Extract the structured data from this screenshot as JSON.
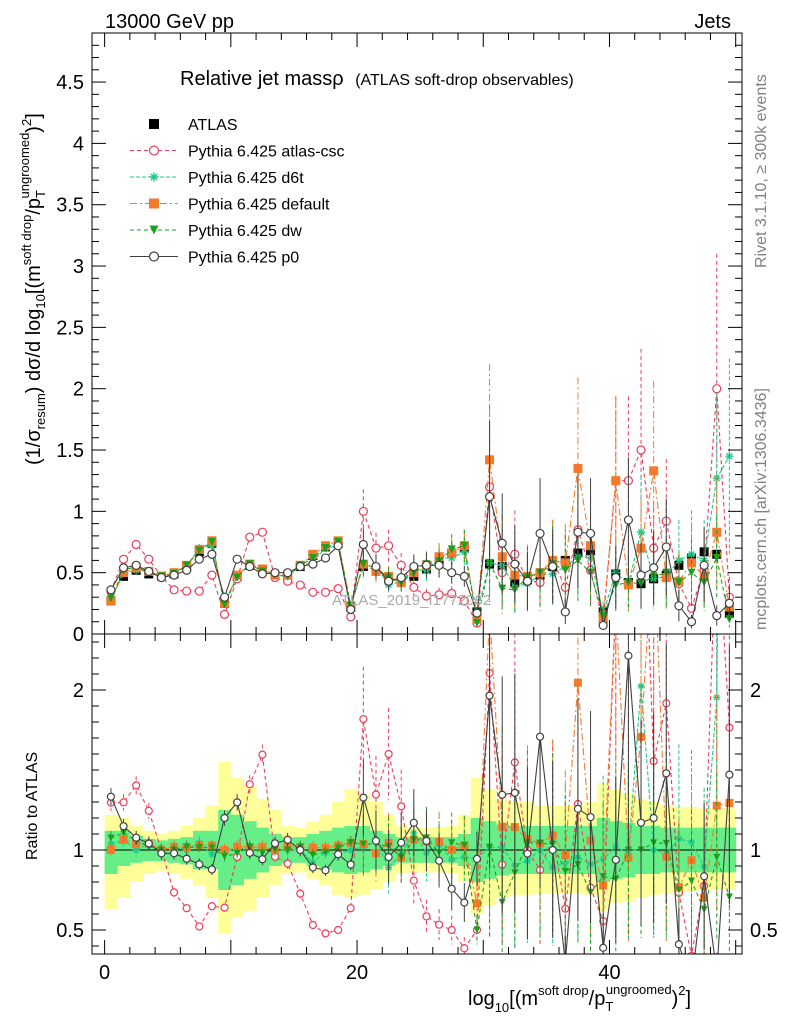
{
  "header": {
    "energy": "13000 GeV pp",
    "category": "Jets"
  },
  "side_labels": {
    "rivet": "Rivet 3.1.10, ≥ 300k events",
    "mcplots": "mcplots.cern.ch [arXiv:1306.3436]"
  },
  "watermark": "ATLAS_2019_I1772062",
  "chart_data": [
    {
      "type": "line",
      "title_main": "Relative jet massρ",
      "title_sub": "(ATLAS soft-drop observables)",
      "ylabel": "(1/σresum) dσ/d log10[(m soft drop/pT ungroomed)2]",
      "ylim": [
        0,
        4.9
      ],
      "xlim": [
        -1,
        50.5
      ],
      "y_ticks": [
        "0",
        "0.5",
        "1",
        "1.5",
        "2",
        "2.5",
        "3",
        "3.5",
        "4",
        "4.5"
      ],
      "legend_position": "top-left",
      "x": [
        0.5,
        1.5,
        2.5,
        3.5,
        4.5,
        5.5,
        6.5,
        7.5,
        8.5,
        9.5,
        10.5,
        11.5,
        12.5,
        13.5,
        14.5,
        15.5,
        16.5,
        17.5,
        18.5,
        19.5,
        20.5,
        21.5,
        22.5,
        23.5,
        24.5,
        25.5,
        26.5,
        27.5,
        28.5,
        29.5,
        30.5,
        31.5,
        32.5,
        33.5,
        34.5,
        35.5,
        36.5,
        37.5,
        38.5,
        39.5,
        40.5,
        41.5,
        42.5,
        43.5,
        44.5,
        45.5,
        46.5,
        47.5,
        48.5,
        49.5
      ],
      "series": [
        {
          "name": "ATLAS",
          "color": "#000000",
          "marker": "square",
          "values": [
            0.27,
            0.47,
            0.52,
            0.49,
            0.47,
            0.49,
            0.55,
            0.67,
            0.74,
            0.25,
            0.47,
            0.56,
            0.52,
            0.48,
            0.47,
            0.55,
            0.64,
            0.71,
            0.74,
            0.22,
            0.55,
            0.52,
            0.45,
            0.44,
            0.47,
            0.53,
            0.6,
            0.66,
            0.7,
            0.18,
            0.57,
            0.55,
            0.42,
            0.44,
            0.48,
            0.55,
            0.6,
            0.66,
            0.68,
            0.18,
            0.49,
            0.42,
            0.41,
            0.45,
            0.48,
            0.56,
            0.62,
            0.67,
            0.65,
            0.17
          ]
        },
        {
          "name": "Pythia 6.425 atlas-csc",
          "color": "#ee3b5a",
          "marker": "circle-open",
          "values": [
            0.35,
            0.61,
            0.73,
            0.61,
            0.47,
            0.36,
            0.35,
            0.35,
            0.48,
            0.16,
            0.45,
            0.79,
            0.83,
            0.46,
            0.43,
            0.4,
            0.34,
            0.34,
            0.37,
            0.14,
            1.0,
            0.7,
            0.72,
            0.56,
            0.38,
            0.31,
            0.32,
            0.33,
            0.27,
            0.09,
            1.2,
            0.5,
            0.65,
            0.44,
            0.42,
            0.6,
            0.38,
            0.85,
            0.52,
            0.1,
            1.25,
            1.25,
            1.5,
            0.7,
            0.92,
            0.41,
            0.21,
            0.52,
            2.0,
            0.3
          ]
        },
        {
          "name": "Pythia 6.425 d6t",
          "color": "#1dcb8a",
          "marker": "star",
          "values": [
            0.28,
            0.5,
            0.52,
            0.51,
            0.47,
            0.5,
            0.55,
            0.7,
            0.72,
            0.25,
            0.47,
            0.57,
            0.53,
            0.48,
            0.47,
            0.55,
            0.59,
            0.7,
            0.72,
            0.22,
            0.56,
            0.55,
            0.4,
            0.43,
            0.52,
            0.52,
            0.62,
            0.62,
            0.67,
            0.17,
            0.58,
            0.56,
            0.38,
            0.41,
            0.48,
            0.49,
            0.55,
            0.63,
            0.62,
            0.17,
            0.5,
            0.41,
            0.83,
            0.45,
            0.47,
            0.6,
            0.65,
            0.6,
            1.27,
            1.45
          ]
        },
        {
          "name": "Pythia 6.425 default",
          "color": "#f47a2a",
          "marker": "square",
          "values": [
            0.27,
            0.5,
            0.54,
            0.51,
            0.47,
            0.5,
            0.56,
            0.69,
            0.76,
            0.25,
            0.48,
            0.57,
            0.53,
            0.48,
            0.48,
            0.56,
            0.65,
            0.72,
            0.76,
            0.23,
            0.57,
            0.51,
            0.47,
            0.42,
            0.5,
            0.56,
            0.63,
            0.66,
            0.72,
            0.12,
            1.42,
            0.63,
            0.48,
            0.47,
            0.5,
            0.6,
            0.58,
            1.35,
            0.72,
            0.14,
            1.25,
            0.4,
            0.7,
            1.33,
            0.46,
            0.43,
            0.58,
            0.47,
            0.83,
            0.22
          ]
        },
        {
          "name": "Pythia 6.425 dw",
          "color": "#1ea01e",
          "marker": "triangle-down",
          "values": [
            0.29,
            0.52,
            0.55,
            0.5,
            0.47,
            0.49,
            0.56,
            0.68,
            0.75,
            0.24,
            0.46,
            0.57,
            0.51,
            0.48,
            0.47,
            0.56,
            0.62,
            0.7,
            0.75,
            0.23,
            0.57,
            0.54,
            0.46,
            0.42,
            0.5,
            0.57,
            0.59,
            0.69,
            0.72,
            0.09,
            0.58,
            0.37,
            0.36,
            0.46,
            0.5,
            0.57,
            0.52,
            0.6,
            0.5,
            0.15,
            0.4,
            0.42,
            0.41,
            0.47,
            0.5,
            0.42,
            0.5,
            0.42,
            0.62,
            0.12
          ]
        },
        {
          "name": "Pythia 6.425 p0",
          "color": "#404040",
          "marker": "circle-open",
          "values": [
            0.36,
            0.54,
            0.56,
            0.51,
            0.46,
            0.48,
            0.52,
            0.61,
            0.65,
            0.3,
            0.61,
            0.55,
            0.49,
            0.5,
            0.5,
            0.55,
            0.57,
            0.62,
            0.72,
            0.2,
            0.73,
            0.55,
            0.43,
            0.46,
            0.55,
            0.56,
            0.56,
            0.5,
            0.47,
            0.17,
            1.12,
            0.74,
            0.57,
            0.43,
            0.82,
            0.55,
            0.18,
            0.83,
            0.82,
            0.07,
            0.46,
            0.93,
            0.48,
            0.54,
            0.71,
            0.23,
            0.1,
            0.56,
            0.15,
            0.25
          ]
        }
      ]
    },
    {
      "type": "line",
      "ylabel": "Ratio to ATLAS",
      "xlabel": "log10[(m soft drop/pT ungroomed)2]",
      "ylim": [
        0.35,
        2.35
      ],
      "xlim": [
        -1,
        50.5
      ],
      "y_ticks": [
        "0.5",
        "1",
        "2"
      ],
      "x_ticks": [
        "0",
        "20",
        "40"
      ],
      "reference_line": 1,
      "band_inner_color": "#66ee88",
      "band_outer_color": "#ffff99",
      "band_inner": [
        [
          0.85,
          1.12
        ],
        [
          0.9,
          1.12
        ],
        [
          0.92,
          1.09
        ],
        [
          0.93,
          1.07
        ],
        [
          0.93,
          1.06
        ],
        [
          0.92,
          1.07
        ],
        [
          0.91,
          1.08
        ],
        [
          0.88,
          1.12
        ],
        [
          0.88,
          1.12
        ],
        [
          0.75,
          1.25
        ],
        [
          0.78,
          1.22
        ],
        [
          0.82,
          1.18
        ],
        [
          0.86,
          1.14
        ],
        [
          0.9,
          1.1
        ],
        [
          0.92,
          1.08
        ],
        [
          0.92,
          1.08
        ],
        [
          0.9,
          1.1
        ],
        [
          0.88,
          1.12
        ],
        [
          0.86,
          1.14
        ],
        [
          0.85,
          1.15
        ],
        [
          0.86,
          1.15
        ],
        [
          0.88,
          1.12
        ],
        [
          0.9,
          1.1
        ],
        [
          0.92,
          1.08
        ],
        [
          0.92,
          1.08
        ],
        [
          0.92,
          1.08
        ],
        [
          0.92,
          1.08
        ],
        [
          0.92,
          1.08
        ],
        [
          0.9,
          1.1
        ],
        [
          0.8,
          1.2
        ],
        [
          0.82,
          1.18
        ],
        [
          0.84,
          1.16
        ],
        [
          0.85,
          1.15
        ],
        [
          0.85,
          1.15
        ],
        [
          0.85,
          1.15
        ],
        [
          0.85,
          1.15
        ],
        [
          0.85,
          1.15
        ],
        [
          0.85,
          1.15
        ],
        [
          0.85,
          1.15
        ],
        [
          0.8,
          1.2
        ],
        [
          0.82,
          1.18
        ],
        [
          0.83,
          1.17
        ],
        [
          0.85,
          1.15
        ],
        [
          0.85,
          1.15
        ],
        [
          0.86,
          1.14
        ],
        [
          0.86,
          1.14
        ],
        [
          0.86,
          1.14
        ],
        [
          0.86,
          1.14
        ],
        [
          0.86,
          1.14
        ],
        [
          0.86,
          1.14
        ]
      ],
      "band_outer": [
        [
          0.63,
          1.22
        ],
        [
          0.7,
          1.2
        ],
        [
          0.8,
          1.15
        ],
        [
          0.85,
          1.12
        ],
        [
          0.87,
          1.1
        ],
        [
          0.85,
          1.12
        ],
        [
          0.82,
          1.15
        ],
        [
          0.78,
          1.2
        ],
        [
          0.7,
          1.28
        ],
        [
          0.48,
          1.55
        ],
        [
          0.58,
          1.45
        ],
        [
          0.62,
          1.4
        ],
        [
          0.7,
          1.32
        ],
        [
          0.78,
          1.25
        ],
        [
          0.85,
          1.15
        ],
        [
          0.86,
          1.14
        ],
        [
          0.82,
          1.18
        ],
        [
          0.78,
          1.22
        ],
        [
          0.72,
          1.3
        ],
        [
          0.7,
          1.38
        ],
        [
          0.72,
          1.35
        ],
        [
          0.75,
          1.3
        ],
        [
          0.8,
          1.22
        ],
        [
          0.85,
          1.15
        ],
        [
          0.86,
          1.14
        ],
        [
          0.86,
          1.14
        ],
        [
          0.86,
          1.14
        ],
        [
          0.85,
          1.15
        ],
        [
          0.8,
          1.22
        ],
        [
          0.6,
          1.45
        ],
        [
          0.65,
          1.38
        ],
        [
          0.7,
          1.32
        ],
        [
          0.72,
          1.3
        ],
        [
          0.72,
          1.3
        ],
        [
          0.73,
          1.28
        ],
        [
          0.73,
          1.28
        ],
        [
          0.73,
          1.28
        ],
        [
          0.73,
          1.28
        ],
        [
          0.72,
          1.3
        ],
        [
          0.62,
          1.42
        ],
        [
          0.67,
          1.38
        ],
        [
          0.68,
          1.35
        ],
        [
          0.7,
          1.32
        ],
        [
          0.72,
          1.3
        ],
        [
          0.73,
          1.28
        ],
        [
          0.74,
          1.27
        ],
        [
          0.74,
          1.27
        ],
        [
          0.75,
          1.26
        ],
        [
          0.75,
          1.26
        ],
        [
          0.75,
          1.26
        ]
      ]
    }
  ]
}
